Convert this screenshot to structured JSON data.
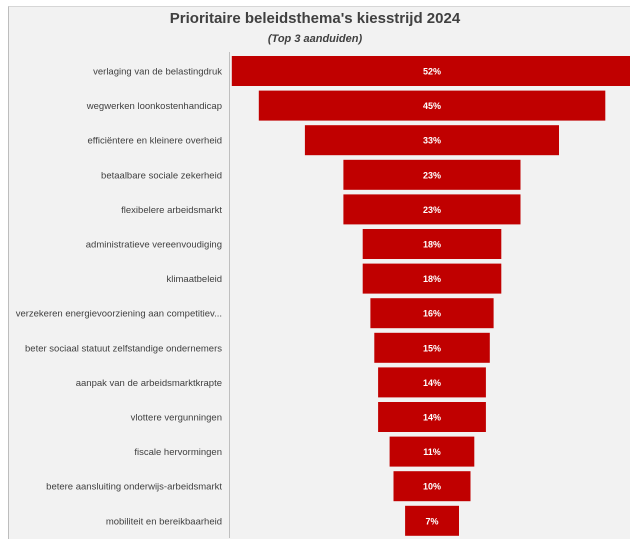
{
  "chart_data": {
    "type": "bar",
    "orientation": "horizontal",
    "style": "funnel",
    "title": "Prioritaire beleidsthema's kiesstrijd 2024",
    "subtitle": "(Top 3 aanduiden)",
    "categories": [
      "verlaging van de belastingdruk",
      "wegwerken loonkostenhandicap",
      "efficiëntere en kleinere overheid",
      "betaalbare sociale zekerheid",
      "flexibelere arbeidsmarkt",
      "administratieve vereenvoudiging",
      "klimaatbeleid",
      "verzekeren energievoorziening aan competitiev...",
      "beter sociaal statuut zelfstandige ondernemers",
      "aanpak van de arbeidsmarktkrapte",
      "vlottere vergunningen",
      "fiscale hervormingen",
      "betere aansluiting onderwijs-arbeidsmarkt",
      "mobiliteit en bereikbaarheid"
    ],
    "values": [
      52,
      45,
      33,
      23,
      23,
      18,
      18,
      16,
      15,
      14,
      14,
      11,
      10,
      7
    ],
    "value_labels": [
      "52%",
      "45%",
      "33%",
      "23%",
      "23%",
      "18%",
      "18%",
      "16%",
      "15%",
      "14%",
      "14%",
      "11%",
      "10%",
      "7%"
    ],
    "unit": "%",
    "bar_color": "#c00000",
    "background_color": "#f2f2f2",
    "grid": false,
    "legend": "none"
  }
}
